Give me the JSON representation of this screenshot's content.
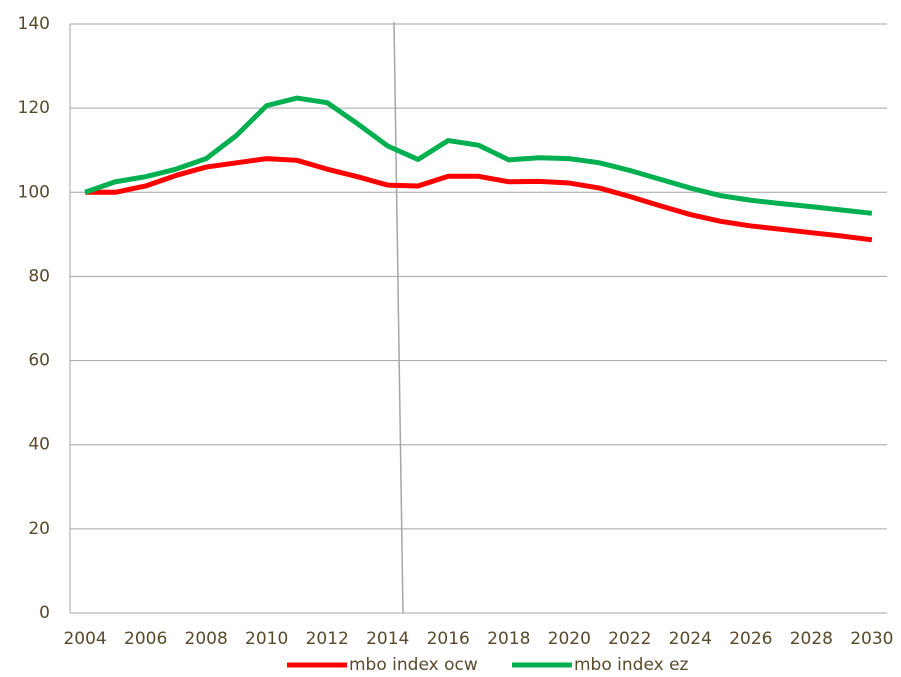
{
  "chart_data": {
    "type": "line",
    "categories": [
      "2004",
      null,
      "2006",
      null,
      "2008",
      null,
      "2010",
      null,
      "2012",
      null,
      "2014",
      null,
      "2016",
      null,
      "2018",
      null,
      "2020",
      null,
      "2022",
      null,
      "2024",
      null,
      "2026",
      null,
      "2028",
      null,
      "2030"
    ],
    "series": [
      {
        "name": "mbo index ocw",
        "color": "#ff0000",
        "values": [
          100,
          100,
          101.5,
          104,
          106,
          107,
          108,
          107.6,
          105.5,
          103.7,
          101.7,
          101.5,
          103.8,
          103.8,
          102.5,
          102.6,
          102.2,
          101,
          99,
          96.8,
          94.7,
          93.1,
          92,
          91.2,
          90.4,
          89.6,
          88.7
        ]
      },
      {
        "name": "mbo index ez",
        "color": "#00b050",
        "values": [
          100,
          102.5,
          103.7,
          105.5,
          108,
          113.5,
          120.6,
          122.4,
          121.3,
          116.3,
          111,
          107.8,
          112.3,
          111.2,
          107.7,
          108.2,
          108,
          107,
          105.2,
          103.1,
          101,
          99.2,
          98.1,
          97.3,
          96.6,
          95.8,
          95
        ]
      }
    ],
    "ylim": [
      0,
      140
    ],
    "yticks": [
      0,
      20,
      40,
      60,
      80,
      100,
      120,
      140
    ],
    "grid": true,
    "legend": "bottom"
  }
}
